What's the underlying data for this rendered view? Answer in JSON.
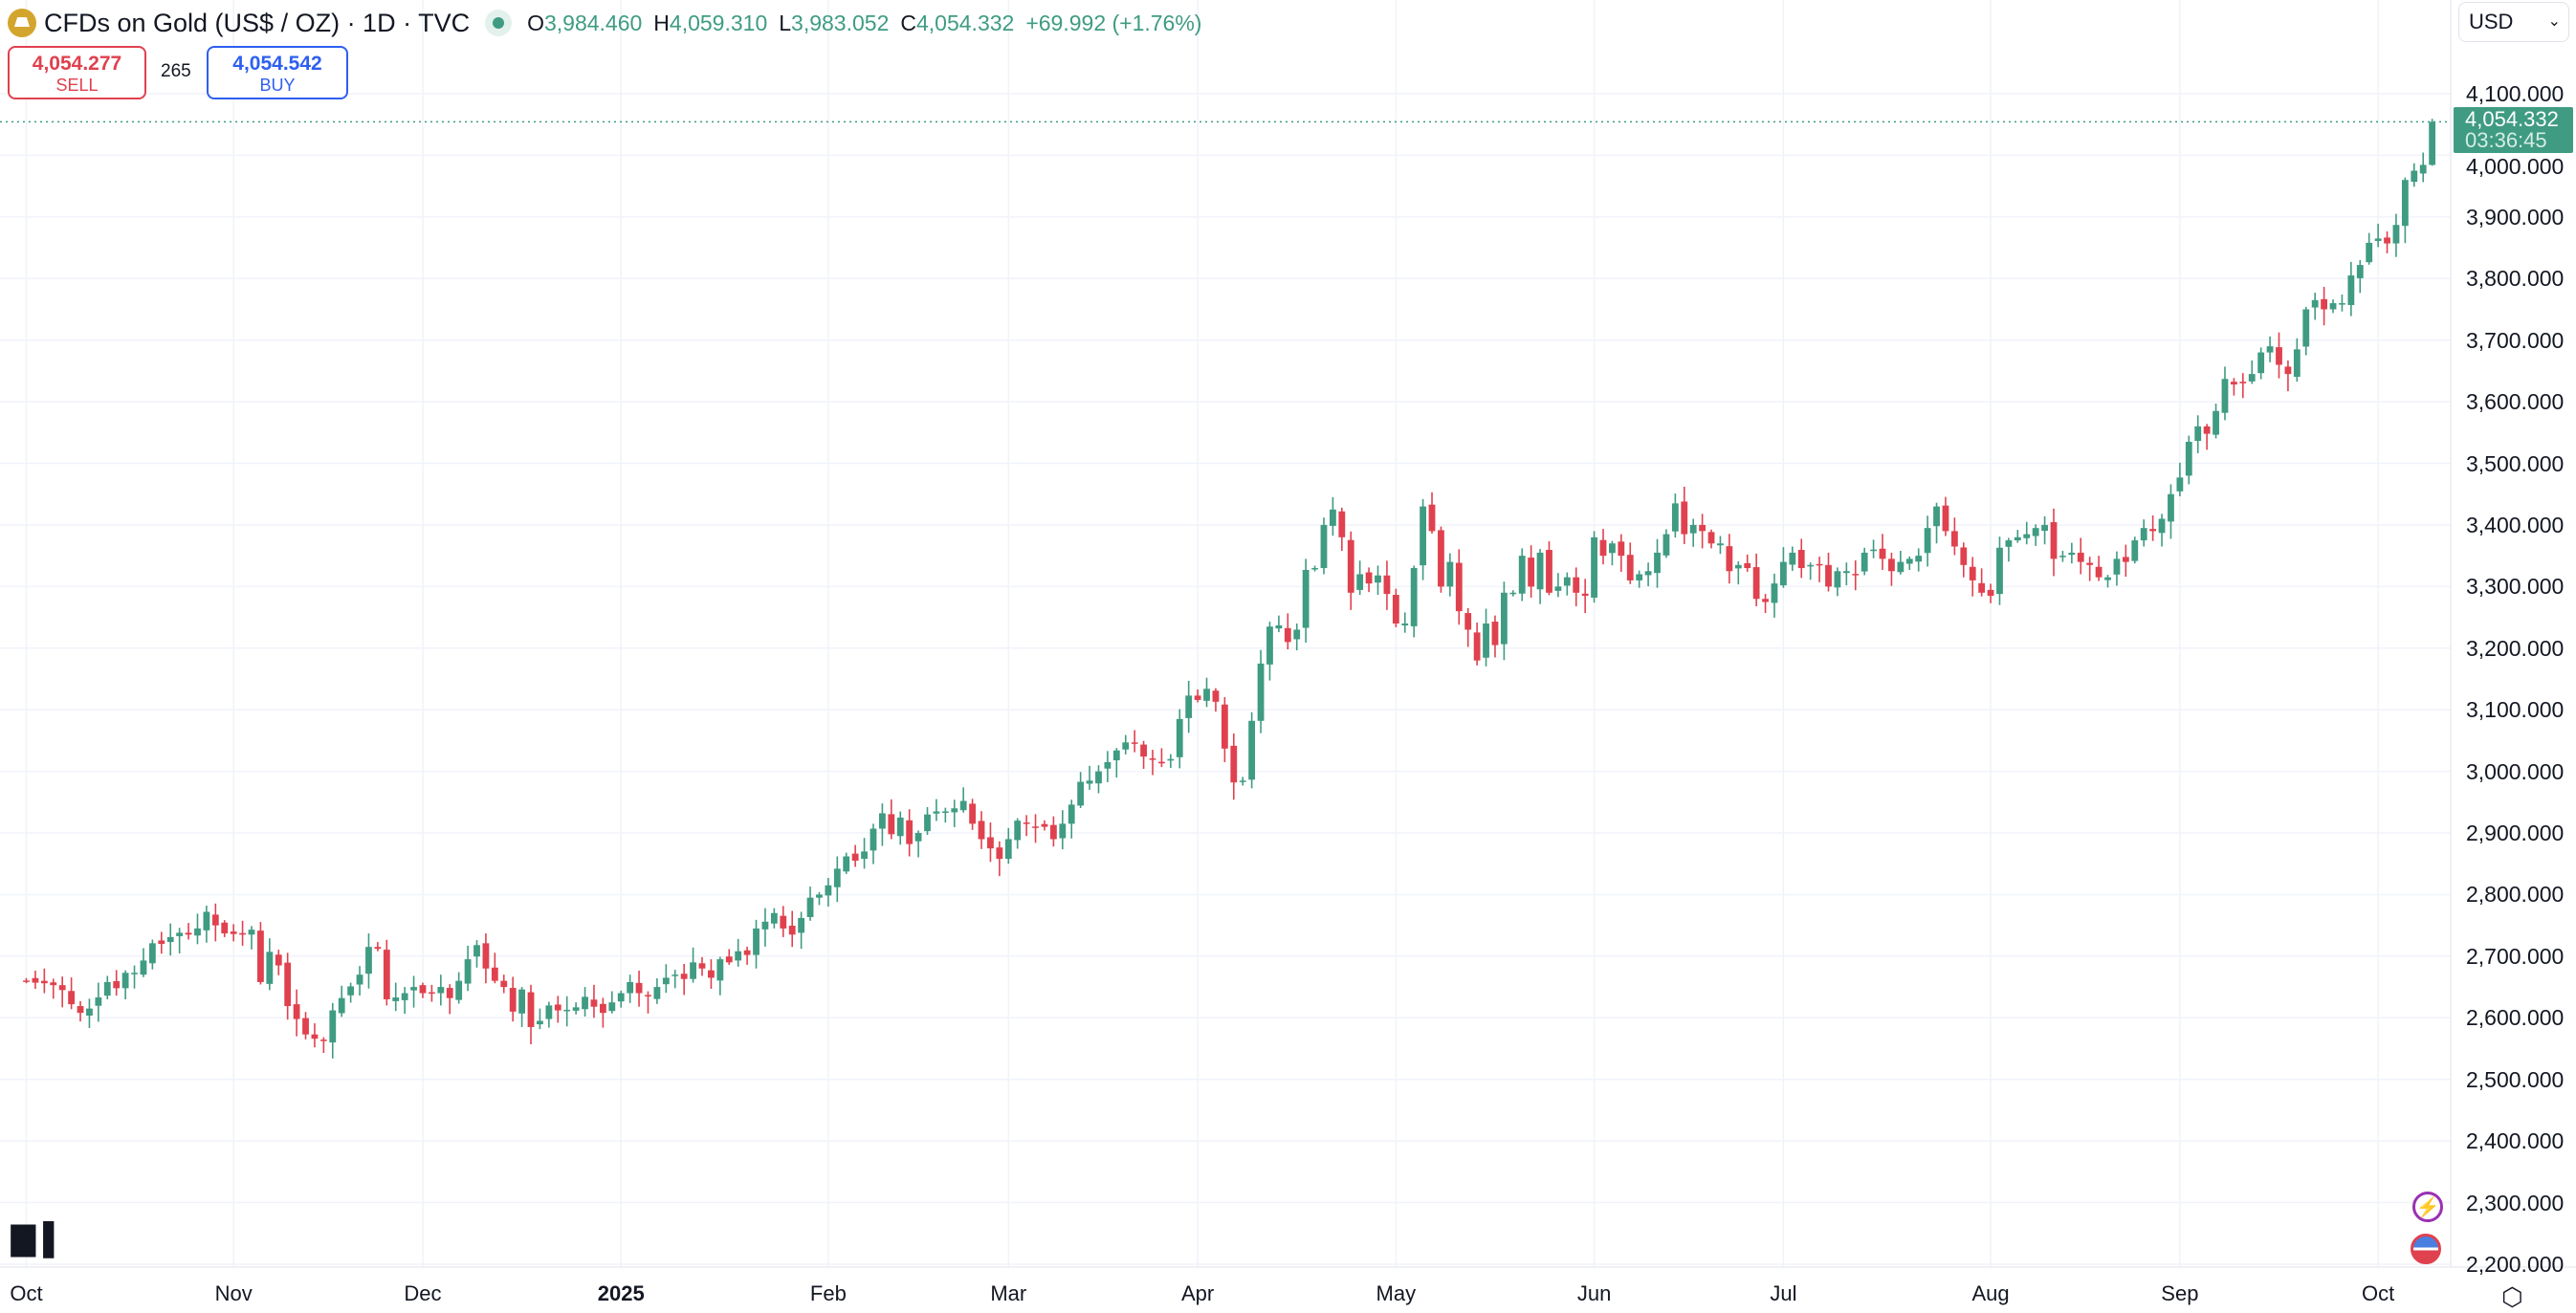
{
  "header": {
    "title": "CFDs on Gold (US$ / OZ) · 1D · TVC",
    "open_label": "O",
    "open": "3,984.460",
    "high_label": "H",
    "high": "4,059.310",
    "low_label": "L",
    "low": "3,983.052",
    "close_label": "C",
    "close": "4,054.332",
    "change": "+69.992 (+1.76%)"
  },
  "trade": {
    "sell_price": "4,054.277",
    "sell_label": "SELL",
    "spread": "265",
    "buy_price": "4,054.542",
    "buy_label": "BUY"
  },
  "currency": "USD",
  "last_price": {
    "value": "4,054.332",
    "countdown": "03:36:45"
  },
  "logo": "17",
  "colors": {
    "up": "#3f9b82",
    "down": "#e0414e",
    "grid": "#f0f3fa"
  },
  "chart_data": {
    "type": "candlestick",
    "title": "CFDs on Gold (US$ / OZ) · 1D · TVC",
    "ylim": [
      2200,
      4100
    ],
    "y_ticks": [
      "4,100.000",
      "4,000.000",
      "3,900.000",
      "3,800.000",
      "3,700.000",
      "3,600.000",
      "3,500.000",
      "3,400.000",
      "3,300.000",
      "3,200.000",
      "3,100.000",
      "3,000.000",
      "2,900.000",
      "2,800.000",
      "2,700.000",
      "2,600.000",
      "2,500.000",
      "2,400.000",
      "2,300.000",
      "2,200.000"
    ],
    "x_ticks": [
      {
        "label": "Oct",
        "index": 0
      },
      {
        "label": "Nov",
        "index": 23
      },
      {
        "label": "Dec",
        "index": 44
      },
      {
        "label": "2025",
        "index": 66,
        "bold": true
      },
      {
        "label": "Feb",
        "index": 89
      },
      {
        "label": "Mar",
        "index": 109
      },
      {
        "label": "Apr",
        "index": 130
      },
      {
        "label": "May",
        "index": 152
      },
      {
        "label": "Jun",
        "index": 174
      },
      {
        "label": "Jul",
        "index": 195
      },
      {
        "label": "Aug",
        "index": 218
      },
      {
        "label": "Sep",
        "index": 239
      },
      {
        "label": "Oct",
        "index": 261
      }
    ],
    "first_open": 2665,
    "closes": [
      2660,
      2657,
      2656,
      2653,
      2645,
      2622,
      2608,
      2615,
      2633,
      2658,
      2648,
      2673,
      2673,
      2693,
      2721,
      2720,
      2731,
      2738,
      2735,
      2745,
      2772,
      2750,
      2737,
      2736,
      2735,
      2743,
      2658,
      2707,
      2685,
      2619,
      2598,
      2573,
      2566,
      2563,
      2612,
      2632,
      2651,
      2670,
      2715,
      2712,
      2630,
      2633,
      2640,
      2650,
      2640,
      2640,
      2650,
      2632,
      2660,
      2695,
      2718,
      2680,
      2660,
      2650,
      2610,
      2646,
      2585,
      2595,
      2620,
      2612,
      2613,
      2617,
      2634,
      2618,
      2608,
      2625,
      2640,
      2658,
      2640,
      2635,
      2650,
      2665,
      2670,
      2663,
      2690,
      2680,
      2665,
      2695,
      2690,
      2708,
      2702,
      2745,
      2756,
      2770,
      2745,
      2735,
      2762,
      2795,
      2800,
      2815,
      2842,
      2862,
      2855,
      2870,
      2907,
      2932,
      2898,
      2925,
      2882,
      2900,
      2930,
      2935,
      2935,
      2940,
      2952,
      2915,
      2890,
      2875,
      2858,
      2890,
      2920,
      2915,
      2910,
      2910,
      2890,
      2915,
      2946,
      2983,
      2985,
      3000,
      3015,
      3034,
      3047,
      3045,
      3024,
      3020,
      3013,
      3020,
      3085,
      3123,
      3116,
      3134,
      3113,
      3037,
      2982,
      2985,
      3082,
      3175,
      3235,
      3237,
      3210,
      3230,
      3327,
      3330,
      3400,
      3425,
      3380,
      3290,
      3320,
      3305,
      3318,
      3288,
      3240,
      3240,
      3330,
      3430,
      3390,
      3300,
      3340,
      3260,
      3230,
      3180,
      3240,
      3205,
      3290,
      3290,
      3350,
      3300,
      3355,
      3290,
      3300,
      3315,
      3290,
      3285,
      3380,
      3350,
      3370,
      3350,
      3310,
      3320,
      3325,
      3355,
      3385,
      3435,
      3385,
      3400,
      3390,
      3370,
      3370,
      3325,
      3335,
      3330,
      3280,
      3275,
      3305,
      3340,
      3355,
      3330,
      3335,
      3335,
      3300,
      3325,
      3325,
      3320,
      3355,
      3360,
      3345,
      3325,
      3340,
      3345,
      3350,
      3395,
      3430,
      3390,
      3365,
      3335,
      3310,
      3290,
      3285,
      3363,
      3375,
      3380,
      3385,
      3395,
      3400,
      3345,
      3350,
      3355,
      3340,
      3335,
      3315,
      3315,
      3345,
      3340,
      3375,
      3395,
      3390,
      3410,
      3450,
      3477,
      3535,
      3560,
      3548,
      3585,
      3637,
      3628,
      3630,
      3645,
      3680,
      3690,
      3660,
      3645,
      3685,
      3750,
      3765,
      3750,
      3760,
      3760,
      3805,
      3822,
      3858,
      3865,
      3857,
      3887,
      3960,
      3975,
      3984.46,
      4054.332
    ],
    "last_candle": {
      "open": 3984.46,
      "high": 4059.31,
      "low": 3983.052,
      "close": 4054.332
    },
    "current_price": 4054.332
  }
}
